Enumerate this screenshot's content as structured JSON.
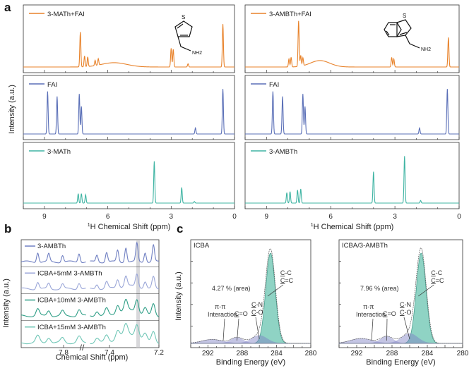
{
  "panel_labels": {
    "a": "a",
    "b": "b",
    "c": "c"
  },
  "colors": {
    "orange": "#e8822a",
    "blue": "#5a6fb7",
    "teal": "#3fb4a3",
    "b1": "#6f7fc2",
    "b2": "#9aa6d8",
    "b3": "#2e9e86",
    "b4": "#6fc6b6",
    "xps_fill": "#8fd3c4",
    "xps_line": "#4a9e8e",
    "xps_small": "#7d7fc4",
    "highlight": "#c7c7cc"
  },
  "chart_data": [
    {
      "id": "a-left",
      "type": "line",
      "ylabel": "Intensity (a.u.)",
      "xlabel_prefix": "1",
      "xlabel": "H Chemical Shift (ppm)",
      "xlim": [
        10,
        0
      ],
      "xticks": [
        "9",
        "6",
        "3",
        "0"
      ],
      "subplots": [
        {
          "legend": "3-MATh+FAI",
          "color": "orange",
          "peaks": [
            [
              7.3,
              0.65
            ],
            [
              7.1,
              0.2
            ],
            [
              6.95,
              0.18
            ],
            [
              6.6,
              0.1
            ],
            [
              6.45,
              0.12
            ],
            [
              3.0,
              0.35
            ],
            [
              2.9,
              0.33
            ],
            [
              2.2,
              0.06
            ],
            [
              0.55,
              0.8
            ]
          ],
          "broad": [
            [
              5.7,
              0.08,
              0.6
            ]
          ]
        },
        {
          "legend": "FAI",
          "color": "blue",
          "peaks": [
            [
              8.85,
              0.85
            ],
            [
              8.4,
              0.75
            ],
            [
              7.35,
              0.8
            ],
            [
              7.25,
              0.55
            ],
            [
              1.85,
              0.12
            ],
            [
              0.55,
              0.9
            ]
          ],
          "broad": []
        },
        {
          "legend": "3-MATh",
          "color": "teal",
          "peaks": [
            [
              7.4,
              0.18
            ],
            [
              7.25,
              0.18
            ],
            [
              7.05,
              0.16
            ],
            [
              3.8,
              0.8
            ],
            [
              2.5,
              0.3
            ],
            [
              1.9,
              0.03
            ]
          ],
          "broad": []
        }
      ]
    },
    {
      "id": "a-right",
      "type": "line",
      "xlabel_prefix": "1",
      "xlabel": "H Chemical Shift (ppm)",
      "xlim": [
        10,
        0
      ],
      "xticks": [
        "9",
        "6",
        "3",
        "0"
      ],
      "subplots": [
        {
          "legend": "3-AMBTh+FAI",
          "color": "orange",
          "peaks": [
            [
              7.95,
              0.15
            ],
            [
              7.85,
              0.18
            ],
            [
              7.5,
              0.85
            ],
            [
              7.4,
              0.2
            ],
            [
              7.3,
              0.15
            ],
            [
              3.15,
              0.18
            ],
            [
              3.05,
              0.15
            ],
            [
              0.5,
              0.55
            ]
          ],
          "broad": [
            [
              6.5,
              0.12,
              0.45
            ]
          ]
        },
        {
          "legend": "FAI",
          "color": "blue",
          "peaks": [
            [
              8.7,
              0.85
            ],
            [
              8.25,
              0.75
            ],
            [
              7.3,
              0.8
            ],
            [
              7.2,
              0.55
            ],
            [
              1.85,
              0.12
            ],
            [
              0.55,
              0.9
            ]
          ],
          "broad": []
        },
        {
          "legend": "3-AMBTh",
          "color": "teal",
          "peaks": [
            [
              8.05,
              0.2
            ],
            [
              7.9,
              0.22
            ],
            [
              7.55,
              0.25
            ],
            [
              7.4,
              0.27
            ],
            [
              4.0,
              0.6
            ],
            [
              2.55,
              0.9
            ],
            [
              1.8,
              0.05
            ]
          ],
          "broad": []
        }
      ]
    },
    {
      "id": "b",
      "type": "line",
      "ylabel": "Intensity (a.u.)",
      "xlabel": "Chemical Shift (ppm)",
      "xticks": [
        "7.8",
        "7.4",
        "7.2"
      ],
      "series": [
        {
          "name": "3-AMBTh",
          "color": "b1"
        },
        {
          "name": "ICBA+5mM 3-AMBTh",
          "color": "b2"
        },
        {
          "name": "ICBA+10mM 3-AMBTh",
          "color": "b3"
        },
        {
          "name": "ICBA+15mM 3-AMBTh",
          "color": "b4"
        }
      ]
    },
    {
      "id": "c-left",
      "type": "area",
      "title": "ICBA",
      "xlabel": "Binding Energy (eV)",
      "ylabel": "Intensity (a.u.)",
      "xlim": [
        294,
        280
      ],
      "xticks": [
        292,
        288,
        284,
        280
      ],
      "main_peak": {
        "center": 284.7,
        "height": 0.92,
        "width": 0.55
      },
      "small_peaks": [
        [
          291.5,
          0.04,
          1.2
        ],
        [
          288.6,
          0.06,
          0.7
        ],
        [
          286.0,
          0.08,
          0.9
        ]
      ],
      "annotations": {
        "area": "4.27 % (area)",
        "pipi": [
          "π-π",
          "Interaction"
        ],
        "co": [
          "C",
          "=O"
        ],
        "cn": [
          "C",
          "-N"
        ],
        "co2": [
          "C",
          "-O"
        ],
        "cc1": [
          "C",
          "-C"
        ],
        "cc2": [
          "C",
          "=C"
        ]
      }
    },
    {
      "id": "c-right",
      "type": "area",
      "title": "ICBA/3-AMBTh",
      "xlabel": "Binding Energy (eV)",
      "xlim": [
        294,
        280
      ],
      "xticks": [
        292,
        288,
        284,
        280
      ],
      "main_peak": {
        "center": 284.7,
        "height": 0.92,
        "width": 0.55
      },
      "small_peaks": [
        [
          291.5,
          0.05,
          1.2
        ],
        [
          288.6,
          0.07,
          0.7
        ],
        [
          286.0,
          0.1,
          0.9
        ]
      ],
      "annotations": {
        "area": "7.96 % (area)",
        "pipi": [
          "π-π",
          "Interaction"
        ],
        "co": [
          "C",
          "=O"
        ],
        "cn": [
          "C",
          "-N"
        ],
        "co2": [
          "C",
          "-O"
        ],
        "cc1": [
          "C",
          "-C"
        ],
        "cc2": [
          "C",
          "=C"
        ]
      }
    }
  ],
  "molecules": {
    "left": {
      "s": "S",
      "nh2": "NH2"
    },
    "right": {
      "s": "S",
      "nh2": "NH2"
    }
  }
}
